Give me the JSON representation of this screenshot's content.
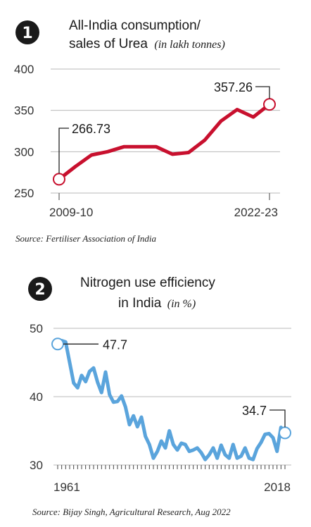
{
  "chart_data": [
    {
      "type": "line",
      "badge": "1",
      "title": "All-India consumption/",
      "title_line2": "sales of Urea",
      "title_unit": "(in lakh tonnes)",
      "y_ticks": [
        250,
        300,
        350,
        400
      ],
      "ylim": [
        250,
        400
      ],
      "x_tick_labels": [
        "2009-10",
        "2022-23"
      ],
      "x": [
        "2009-10",
        "2010-11",
        "2011-12",
        "2012-13",
        "2013-14",
        "2014-15",
        "2015-16",
        "2016-17",
        "2017-18",
        "2018-19",
        "2019-20",
        "2020-21",
        "2021-22",
        "2022-23"
      ],
      "values": [
        266.73,
        282,
        296,
        300,
        306,
        306,
        306,
        297,
        299,
        314,
        337,
        351,
        342,
        357.26
      ],
      "annotations": [
        {
          "label": "266.73",
          "index": 0
        },
        {
          "label": "357.26",
          "index": 13
        }
      ],
      "color": "#c8102e",
      "source": "Source: Fertiliser Association of India"
    },
    {
      "type": "line",
      "badge": "2",
      "title": "Nitrogen use efficiency",
      "title_line2": "in India",
      "title_unit": "(in %)",
      "y_ticks": [
        30,
        40,
        50
      ],
      "ylim": [
        30,
        50
      ],
      "x_tick_labels": [
        "1961",
        "2018"
      ],
      "x_start": 1961,
      "x_end": 2018,
      "values": [
        47.7,
        48.2,
        48.0,
        45.0,
        42.0,
        41.3,
        43.1,
        42.2,
        43.7,
        44.2,
        42.1,
        40.6,
        43.6,
        40.3,
        39.2,
        39.3,
        40.1,
        38.5,
        35.9,
        37.2,
        35.6,
        37.0,
        34.2,
        33.0,
        31.0,
        32.0,
        33.5,
        32.5,
        35.0,
        33.0,
        32.2,
        33.2,
        33.0,
        32.0,
        32.2,
        32.5,
        31.8,
        30.8,
        31.5,
        32.5,
        31.0,
        32.9,
        31.5,
        31.0,
        33.0,
        31.0,
        31.3,
        32.5,
        31.0,
        30.8,
        32.4,
        33.3,
        34.5,
        34.6,
        34.0,
        32.0,
        35.5,
        34.7
      ],
      "annotations": [
        {
          "label": "47.7",
          "index": 0
        },
        {
          "label": "34.7",
          "index": 57
        }
      ],
      "color": "#5aa4dc",
      "source": "Source: Bijay Singh, Agricultural Research, Aug 2022"
    }
  ]
}
